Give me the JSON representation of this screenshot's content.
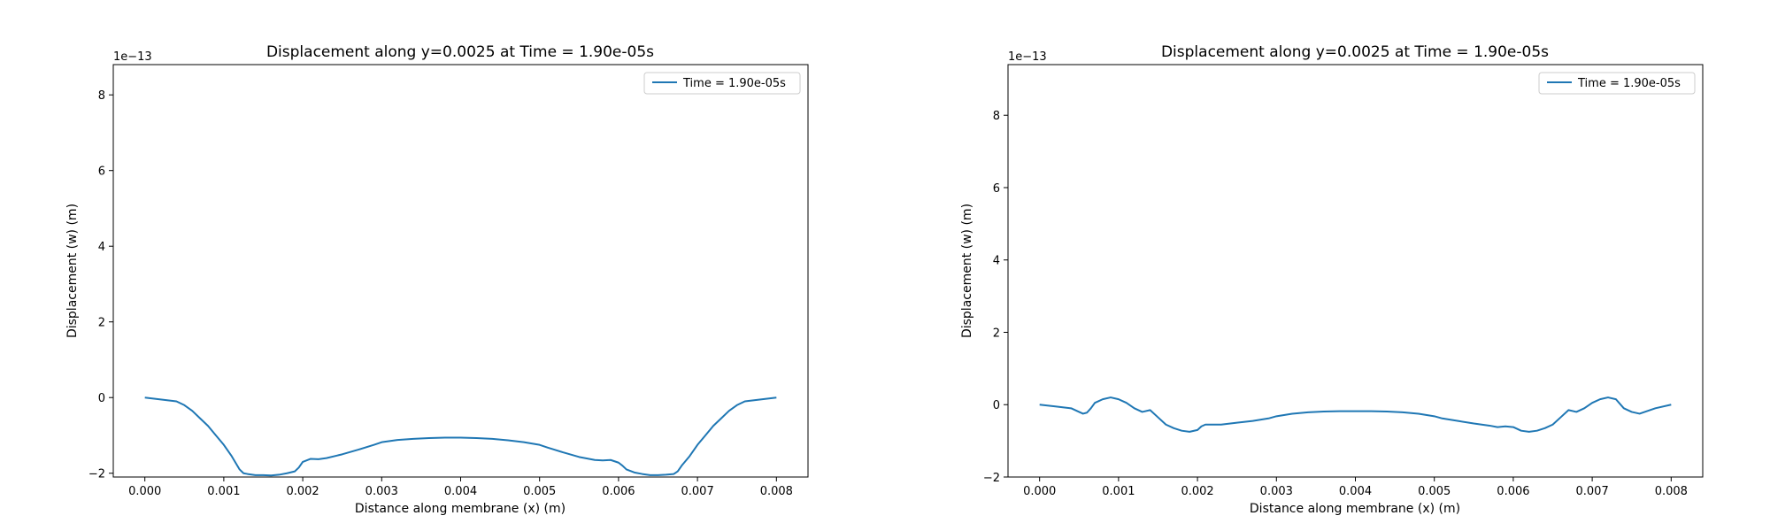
{
  "chart_data": [
    {
      "type": "line",
      "title": "Displacement along y=0.0025 at Time = 1.90e-05s",
      "xlabel": "Distance along membrane (x) (m)",
      "ylabel": "Displacement (w) (m)",
      "offset_text": "1e−13",
      "xlim": [
        -0.0004,
        0.0084
      ],
      "ylim": [
        -2.1,
        8.8
      ],
      "xticks": [
        0.0,
        0.001,
        0.002,
        0.003,
        0.004,
        0.005,
        0.006,
        0.007,
        0.008
      ],
      "xtick_labels": [
        "0.000",
        "0.001",
        "0.002",
        "0.003",
        "0.004",
        "0.005",
        "0.006",
        "0.007",
        "0.008"
      ],
      "yticks": [
        -2,
        0,
        2,
        4,
        6,
        8
      ],
      "ytick_labels": [
        "−2",
        "0",
        "2",
        "4",
        "6",
        "8"
      ],
      "grid": false,
      "legend_position": "top-right",
      "series": [
        {
          "name": "Time = 1.90e-05s",
          "color": "#1f77b4",
          "x": [
            0.0,
            0.0002,
            0.0004,
            0.0005,
            0.0006,
            0.0007,
            0.0008,
            0.0009,
            0.001,
            0.0011,
            0.0012,
            0.00125,
            0.0013,
            0.0014,
            0.0015,
            0.0016,
            0.0017,
            0.0018,
            0.0019,
            0.00195,
            0.002,
            0.0021,
            0.0022,
            0.0023,
            0.0025,
            0.0027,
            0.0029,
            0.003,
            0.0032,
            0.0034,
            0.0036,
            0.0038,
            0.004,
            0.0042,
            0.0044,
            0.0046,
            0.0048,
            0.005,
            0.0051,
            0.0053,
            0.0055,
            0.0057,
            0.0058,
            0.0059,
            0.006,
            0.00605,
            0.0061,
            0.0062,
            0.0063,
            0.0064,
            0.0065,
            0.0066,
            0.0067,
            0.00675,
            0.0068,
            0.0069,
            0.007,
            0.0071,
            0.0072,
            0.0073,
            0.0074,
            0.0075,
            0.0076,
            0.0078,
            0.008
          ],
          "y": [
            0.0,
            -0.05,
            -0.1,
            -0.2,
            -0.35,
            -0.55,
            -0.75,
            -1.0,
            -1.25,
            -1.55,
            -1.9,
            -2.0,
            -2.02,
            -2.05,
            -2.05,
            -2.06,
            -2.04,
            -2.0,
            -1.95,
            -1.85,
            -1.7,
            -1.62,
            -1.63,
            -1.6,
            -1.5,
            -1.38,
            -1.25,
            -1.18,
            -1.12,
            -1.09,
            -1.07,
            -1.06,
            -1.06,
            -1.07,
            -1.09,
            -1.13,
            -1.18,
            -1.25,
            -1.32,
            -1.45,
            -1.57,
            -1.65,
            -1.66,
            -1.65,
            -1.72,
            -1.8,
            -1.9,
            -1.98,
            -2.02,
            -2.05,
            -2.05,
            -2.04,
            -2.02,
            -1.95,
            -1.8,
            -1.55,
            -1.25,
            -1.0,
            -0.75,
            -0.55,
            -0.35,
            -0.2,
            -0.1,
            -0.05,
            0.0
          ]
        }
      ]
    },
    {
      "type": "line",
      "title": "Displacement along y=0.0025 at Time = 1.90e-05s",
      "xlabel": "Distance along membrane (x) (m)",
      "ylabel": "Displacement (w) (m)",
      "offset_text": "1e−13",
      "xlim": [
        -0.0004,
        0.0084
      ],
      "ylim": [
        -2.0,
        9.4
      ],
      "xticks": [
        0.0,
        0.001,
        0.002,
        0.003,
        0.004,
        0.005,
        0.006,
        0.007,
        0.008
      ],
      "xtick_labels": [
        "0.000",
        "0.001",
        "0.002",
        "0.003",
        "0.004",
        "0.005",
        "0.006",
        "0.007",
        "0.008"
      ],
      "yticks": [
        -2,
        0,
        2,
        4,
        6,
        8
      ],
      "ytick_labels": [
        "−2",
        "0",
        "2",
        "4",
        "6",
        "8"
      ],
      "grid": false,
      "legend_position": "top-right",
      "series": [
        {
          "name": "Time = 1.90e-05s",
          "color": "#1f77b4",
          "x": [
            0.0,
            0.0002,
            0.0004,
            0.0005,
            0.00055,
            0.0006,
            0.00065,
            0.0007,
            0.0008,
            0.0009,
            0.001,
            0.0011,
            0.0012,
            0.0013,
            0.0014,
            0.0015,
            0.0016,
            0.0017,
            0.0018,
            0.0019,
            0.002,
            0.00205,
            0.0021,
            0.0022,
            0.0023,
            0.0025,
            0.0027,
            0.0029,
            0.003,
            0.0032,
            0.0034,
            0.0036,
            0.0038,
            0.004,
            0.0042,
            0.0044,
            0.0046,
            0.0048,
            0.005,
            0.0051,
            0.0053,
            0.0055,
            0.0057,
            0.0058,
            0.0059,
            0.006,
            0.0061,
            0.0062,
            0.0063,
            0.0064,
            0.0065,
            0.0066,
            0.0067,
            0.0068,
            0.0069,
            0.007,
            0.0071,
            0.0072,
            0.0073,
            0.0074,
            0.0075,
            0.0076,
            0.0078,
            0.008
          ],
          "y": [
            0.0,
            -0.05,
            -0.1,
            -0.2,
            -0.25,
            -0.22,
            -0.1,
            0.05,
            0.15,
            0.2,
            0.15,
            0.05,
            -0.1,
            -0.2,
            -0.15,
            -0.35,
            -0.55,
            -0.65,
            -0.72,
            -0.75,
            -0.7,
            -0.6,
            -0.55,
            -0.55,
            -0.55,
            -0.5,
            -0.45,
            -0.38,
            -0.32,
            -0.25,
            -0.21,
            -0.19,
            -0.18,
            -0.18,
            -0.18,
            -0.19,
            -0.21,
            -0.25,
            -0.32,
            -0.38,
            -0.45,
            -0.52,
            -0.58,
            -0.62,
            -0.6,
            -0.62,
            -0.72,
            -0.75,
            -0.72,
            -0.65,
            -0.55,
            -0.35,
            -0.15,
            -0.2,
            -0.1,
            0.05,
            0.15,
            0.2,
            0.15,
            -0.1,
            -0.2,
            -0.25,
            -0.1,
            0.0
          ]
        }
      ]
    }
  ]
}
